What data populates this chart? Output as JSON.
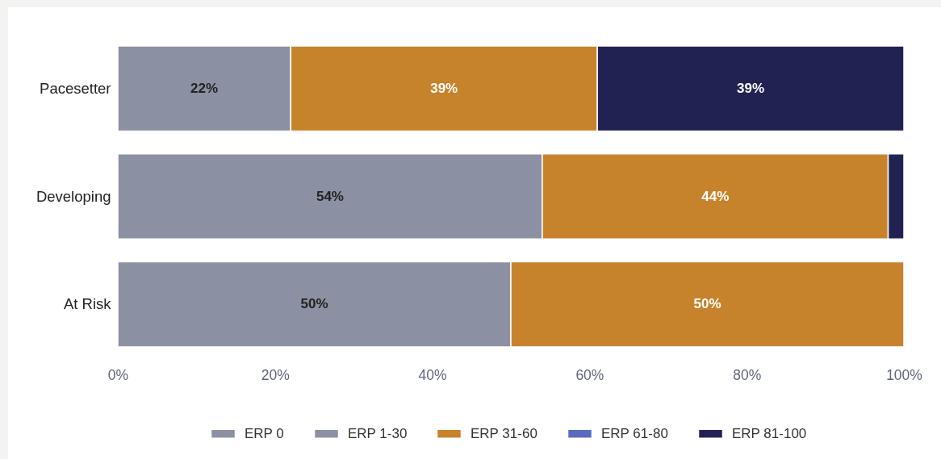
{
  "chart_data": {
    "type": "bar",
    "orientation": "horizontal",
    "stacked": true,
    "categories": [
      "Pacesetter",
      "Developing",
      "At Risk"
    ],
    "series": [
      {
        "name": "ERP 0",
        "color": "#8b91a3",
        "values": [
          null,
          null,
          null
        ]
      },
      {
        "name": "ERP 1-30",
        "color": "#8b91a3",
        "values": [
          22,
          54,
          50
        ],
        "value_labels": [
          "22%",
          "54%",
          "50%"
        ]
      },
      {
        "name": "ERP 31-60",
        "color": "#c7832c",
        "values": [
          39,
          44,
          50
        ],
        "value_labels": [
          "39%",
          "44%",
          "50%"
        ]
      },
      {
        "name": "ERP 61-80",
        "color": "#5b6abf",
        "values": [
          null,
          null,
          null
        ]
      },
      {
        "name": "ERP 81-100",
        "color": "#222252",
        "values": [
          39,
          2,
          null
        ],
        "value_labels": [
          "39%",
          null,
          null
        ]
      }
    ],
    "xlim": [
      0,
      100
    ],
    "xticks": [
      {
        "value": 0,
        "label": "0%"
      },
      {
        "value": 20,
        "label": "20%"
      },
      {
        "value": 40,
        "label": "40%"
      },
      {
        "value": 60,
        "label": "60%"
      },
      {
        "value": 80,
        "label": "80%"
      },
      {
        "value": 100,
        "label": "100%"
      }
    ],
    "legend": "bottom"
  }
}
